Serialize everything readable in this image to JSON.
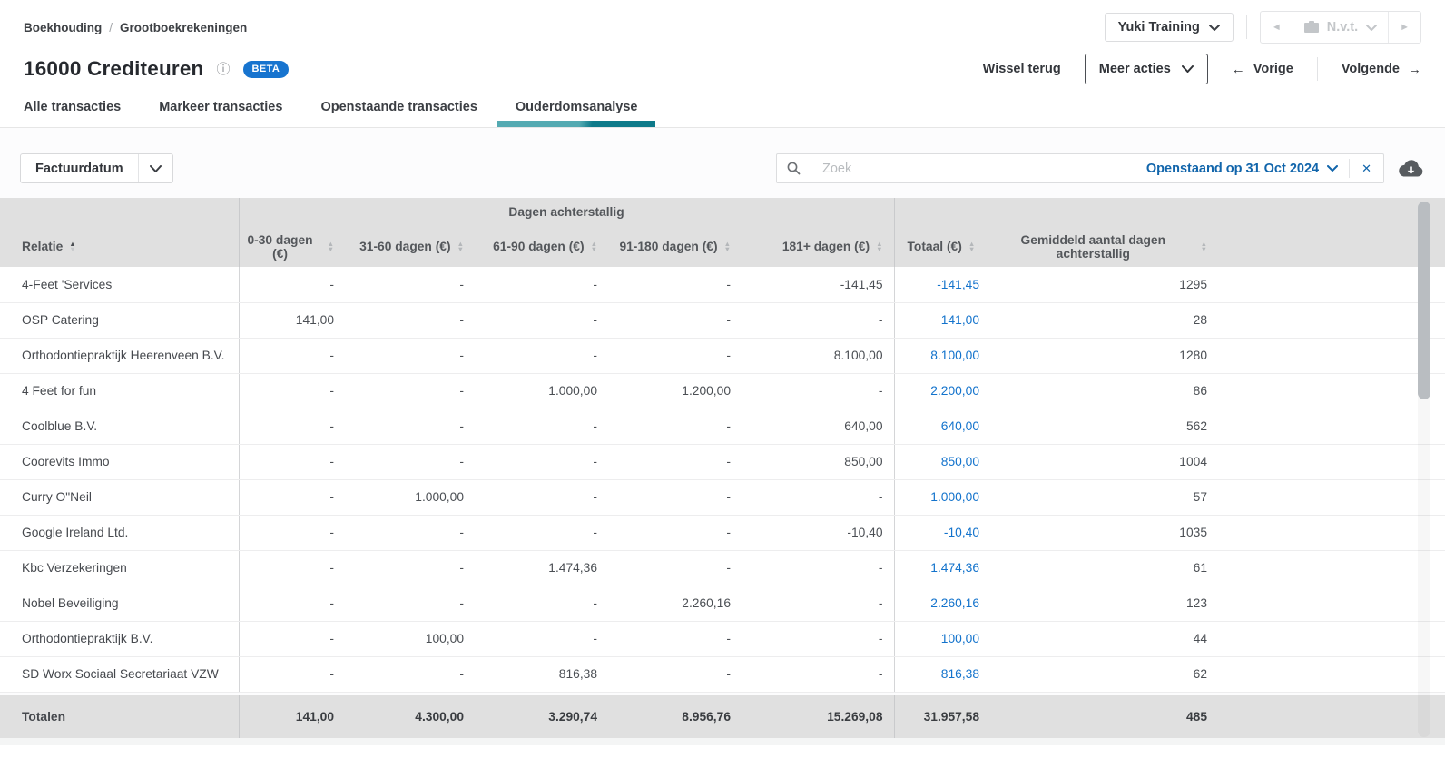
{
  "breadcrumb": {
    "items": [
      "Boekhouding",
      "Grootboekrekeningen"
    ],
    "separator": "/"
  },
  "header": {
    "title": "16000 Crediteuren",
    "beta_badge": "BETA",
    "administration": "Yuki Training",
    "period_selector": "N.v.t.",
    "actions": {
      "wissel_terug": "Wissel terug",
      "meer_acties": "Meer acties",
      "vorige": "Vorige",
      "volgende": "Volgende",
      "vorige_arrow": "←",
      "volgende_arrow": "→"
    }
  },
  "tabs": [
    {
      "label": "Alle transacties",
      "active": false
    },
    {
      "label": "Markeer transacties",
      "active": false
    },
    {
      "label": "Openstaande transacties",
      "active": false
    },
    {
      "label": "Ouderdomsanalyse",
      "active": true
    }
  ],
  "filter": {
    "date_type_label": "Factuurdatum"
  },
  "search": {
    "placeholder": "Zoek",
    "filter_label": "Openstaand op 31 Oct 2024",
    "clear_glyph": "✕"
  },
  "table": {
    "group_header": "Dagen achterstallig",
    "columns": [
      "Relatie",
      "0-30 dagen (€)",
      "31-60 dagen (€)",
      "61-90 dagen (€)",
      "91-180 dagen (€)",
      "181+ dagen (€)",
      "Totaal (€)",
      "Gemiddeld aantal dagen achterstallig"
    ],
    "sort": {
      "column": "Relatie",
      "direction": "asc"
    },
    "rows": [
      {
        "relatie": "4-Feet 'Services",
        "d0_30": "-",
        "d31_60": "-",
        "d61_90": "-",
        "d91_180": "-",
        "d181": "-141,45",
        "totaal": "-141,45",
        "gemiddeld": "1295"
      },
      {
        "relatie": "OSP Catering",
        "d0_30": "141,00",
        "d31_60": "-",
        "d61_90": "-",
        "d91_180": "-",
        "d181": "-",
        "totaal": "141,00",
        "gemiddeld": "28"
      },
      {
        "relatie": "Orthodontiepraktijk Heerenveen B.V.",
        "d0_30": "-",
        "d31_60": "-",
        "d61_90": "-",
        "d91_180": "-",
        "d181": "8.100,00",
        "totaal": "8.100,00",
        "gemiddeld": "1280"
      },
      {
        "relatie": "4 Feet for fun",
        "d0_30": "-",
        "d31_60": "-",
        "d61_90": "1.000,00",
        "d91_180": "1.200,00",
        "d181": "-",
        "totaal": "2.200,00",
        "gemiddeld": "86"
      },
      {
        "relatie": "Coolblue B.V.",
        "d0_30": "-",
        "d31_60": "-",
        "d61_90": "-",
        "d91_180": "-",
        "d181": "640,00",
        "totaal": "640,00",
        "gemiddeld": "562"
      },
      {
        "relatie": "Coorevits Immo",
        "d0_30": "-",
        "d31_60": "-",
        "d61_90": "-",
        "d91_180": "-",
        "d181": "850,00",
        "totaal": "850,00",
        "gemiddeld": "1004"
      },
      {
        "relatie": "Curry O\"Neil",
        "d0_30": "-",
        "d31_60": "1.000,00",
        "d61_90": "-",
        "d91_180": "-",
        "d181": "-",
        "totaal": "1.000,00",
        "gemiddeld": "57"
      },
      {
        "relatie": "Google Ireland Ltd.",
        "d0_30": "-",
        "d31_60": "-",
        "d61_90": "-",
        "d91_180": "-",
        "d181": "-10,40",
        "totaal": "-10,40",
        "gemiddeld": "1035"
      },
      {
        "relatie": "Kbc Verzekeringen",
        "d0_30": "-",
        "d31_60": "-",
        "d61_90": "1.474,36",
        "d91_180": "-",
        "d181": "-",
        "totaal": "1.474,36",
        "gemiddeld": "61"
      },
      {
        "relatie": "Nobel Beveiliging",
        "d0_30": "-",
        "d31_60": "-",
        "d61_90": "-",
        "d91_180": "2.260,16",
        "d181": "-",
        "totaal": "2.260,16",
        "gemiddeld": "123"
      },
      {
        "relatie": "Orthodontiepraktijk B.V.",
        "d0_30": "-",
        "d31_60": "100,00",
        "d61_90": "-",
        "d91_180": "-",
        "d181": "-",
        "totaal": "100,00",
        "gemiddeld": "44"
      },
      {
        "relatie": "SD Worx Sociaal Secretariaat VZW",
        "d0_30": "-",
        "d31_60": "-",
        "d61_90": "816,38",
        "d91_180": "-",
        "d181": "-",
        "totaal": "816,38",
        "gemiddeld": "62"
      }
    ],
    "totals": {
      "label": "Totalen",
      "d0_30": "141,00",
      "d31_60": "4.300,00",
      "d61_90": "3.290,74",
      "d91_180": "8.956,76",
      "d181": "15.269,08",
      "totaal": "31.957,58",
      "gemiddeld": "485"
    }
  },
  "colors": {
    "link_blue": "#1373cc",
    "badge_blue": "#1774cf",
    "tab_accent_light": "#54aab2",
    "tab_accent_dark": "#0e7a8a",
    "header_gray": "#e0e0e0"
  }
}
